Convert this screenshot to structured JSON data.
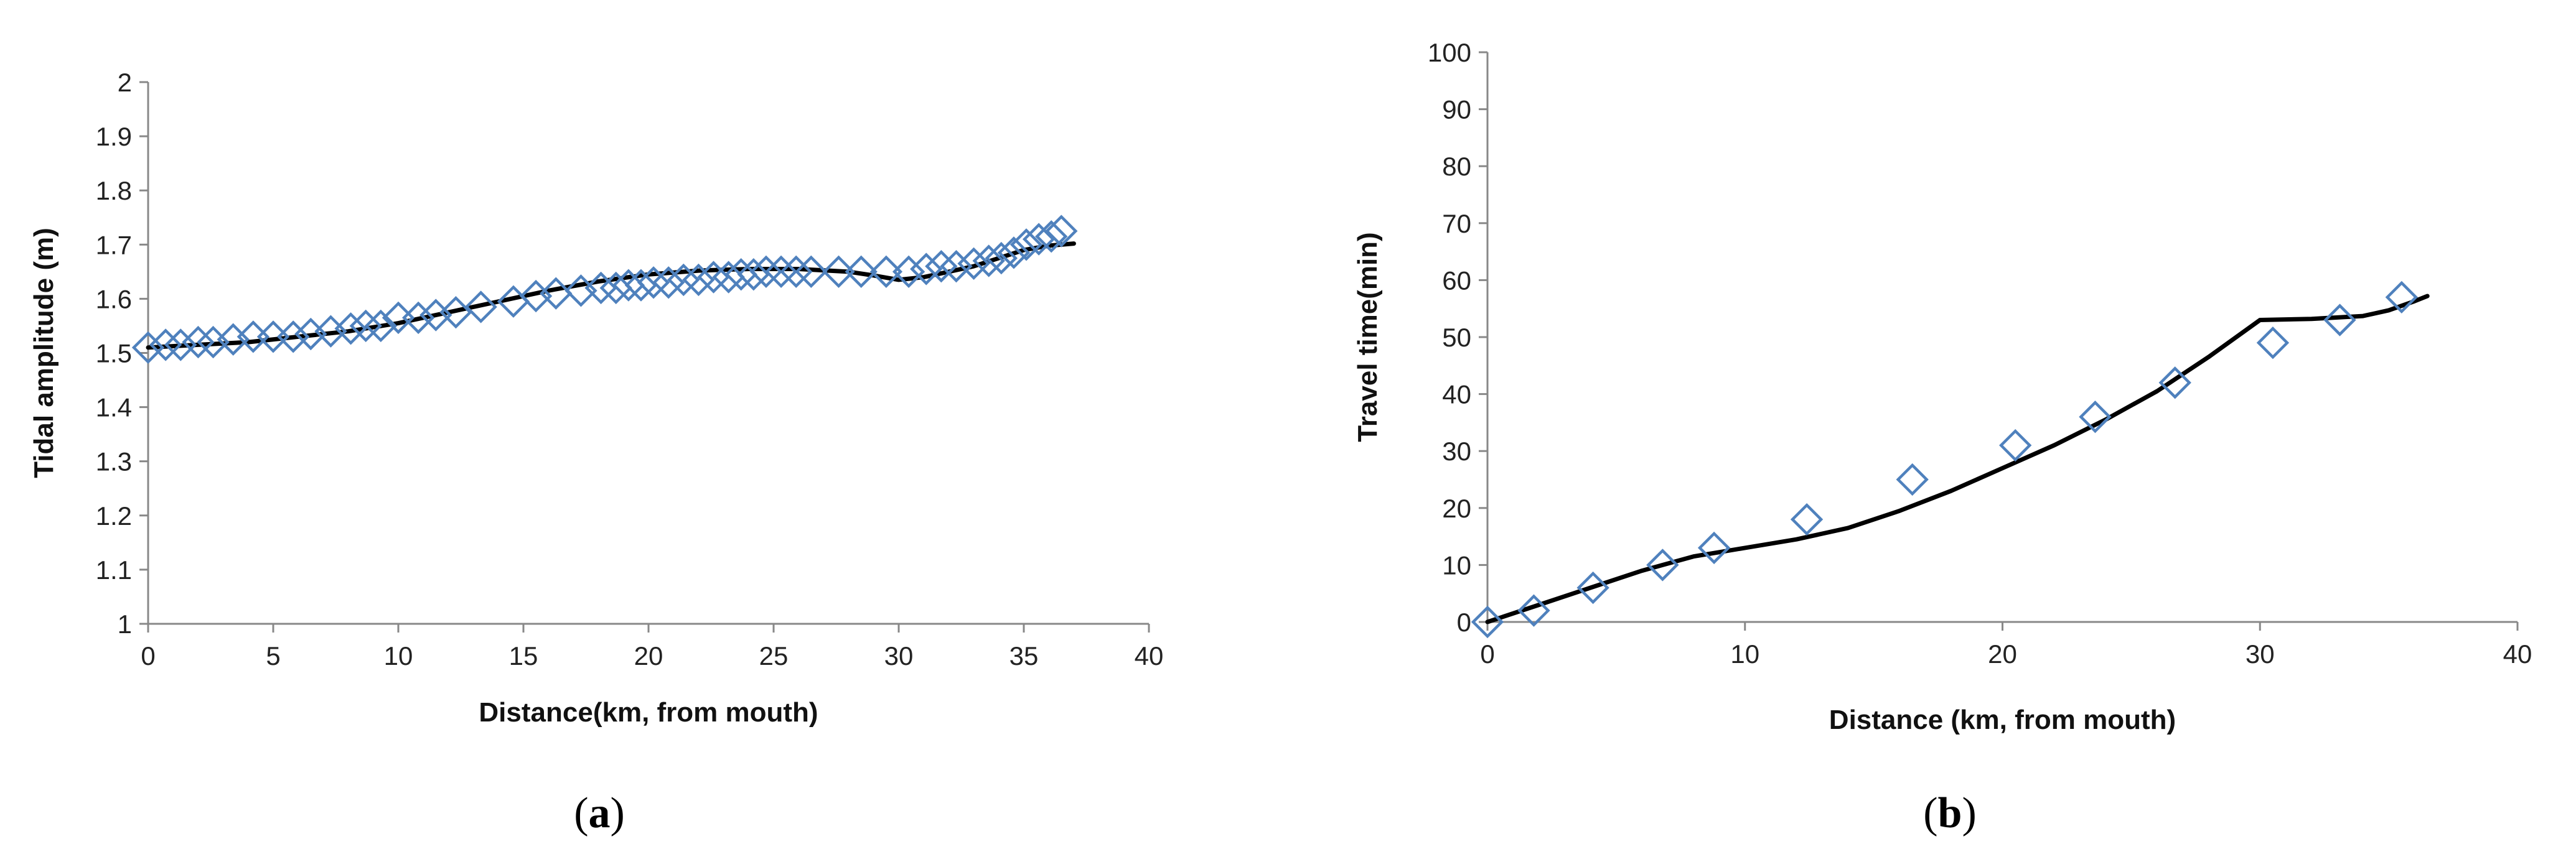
{
  "chart_data": [
    {
      "type": "scatter",
      "panel_label": "a",
      "xlabel": "Distance(km, from mouth)",
      "ylabel": "Tidal amplitude (m)",
      "xlim": [
        0,
        40
      ],
      "ylim": [
        1,
        2
      ],
      "x_ticks": [
        0,
        5,
        10,
        15,
        20,
        25,
        30,
        35,
        40
      ],
      "y_ticks": [
        1,
        1.1,
        1.2,
        1.3,
        1.4,
        1.5,
        1.6,
        1.7,
        1.8,
        1.9,
        2
      ],
      "grid": false,
      "series": [
        {
          "kind": "line",
          "color": "#000000",
          "x": [
            0,
            2,
            4,
            6,
            8,
            10,
            12,
            14,
            16,
            18,
            20,
            22,
            24,
            26,
            28,
            29,
            30,
            31,
            32,
            33,
            34,
            35,
            36,
            37
          ],
          "y": [
            1.51,
            1.515,
            1.52,
            1.53,
            1.54,
            1.555,
            1.575,
            1.595,
            1.615,
            1.632,
            1.645,
            1.652,
            1.655,
            1.655,
            1.65,
            1.643,
            1.635,
            1.64,
            1.65,
            1.66,
            1.675,
            1.69,
            1.698,
            1.702
          ]
        },
        {
          "kind": "markers",
          "marker": "diamond",
          "color": "#4f81bd",
          "x": [
            0,
            0.7,
            1.3,
            2,
            2.6,
            3.4,
            4.2,
            5.0,
            5.8,
            6.5,
            7.3,
            8.1,
            8.7,
            9.3,
            10.0,
            10.8,
            11.5,
            12.3,
            13.3,
            14.6,
            15.5,
            16.3,
            17.3,
            18.1,
            18.7,
            19.2,
            19.7,
            20.2,
            20.8,
            21.4,
            22.0,
            22.6,
            23.2,
            23.7,
            24.2,
            24.7,
            25.3,
            25.9,
            26.5,
            27.6,
            28.5,
            29.5,
            30.4,
            31.1,
            31.7,
            32.3,
            33.0,
            33.6,
            34.1,
            34.6,
            35.1,
            35.6,
            36.1,
            36.5
          ],
          "y": [
            1.51,
            1.515,
            1.515,
            1.52,
            1.52,
            1.525,
            1.53,
            1.53,
            1.53,
            1.535,
            1.54,
            1.545,
            1.55,
            1.55,
            1.565,
            1.565,
            1.57,
            1.575,
            1.585,
            1.595,
            1.605,
            1.61,
            1.615,
            1.62,
            1.62,
            1.625,
            1.625,
            1.63,
            1.63,
            1.635,
            1.635,
            1.64,
            1.64,
            1.645,
            1.645,
            1.65,
            1.65,
            1.65,
            1.65,
            1.65,
            1.65,
            1.65,
            1.65,
            1.655,
            1.66,
            1.66,
            1.665,
            1.67,
            1.675,
            1.685,
            1.7,
            1.71,
            1.715,
            1.725
          ]
        }
      ]
    },
    {
      "type": "scatter",
      "panel_label": "b",
      "xlabel": "Distance (km, from mouth)",
      "ylabel": "Travel time(min)",
      "xlim": [
        0,
        40
      ],
      "ylim": [
        0,
        100
      ],
      "x_ticks": [
        0,
        10,
        20,
        30,
        40
      ],
      "y_ticks": [
        0,
        10,
        20,
        30,
        40,
        50,
        60,
        70,
        80,
        90,
        100
      ],
      "grid": false,
      "series": [
        {
          "kind": "line",
          "color": "#000000",
          "x": [
            0,
            2,
            4,
            6,
            8,
            10,
            12,
            14,
            16,
            18,
            20,
            22,
            24,
            26,
            28,
            30,
            32,
            34,
            35,
            36,
            36.5
          ],
          "y": [
            0,
            3,
            6,
            9,
            11.5,
            13,
            14.5,
            16.5,
            19.5,
            23,
            27,
            31,
            35.5,
            40.5,
            46.5,
            53,
            53.2,
            53.7,
            54.7,
            56.3,
            57.2
          ]
        },
        {
          "kind": "markers",
          "marker": "diamond",
          "color": "#4f81bd",
          "x": [
            0,
            1.8,
            4.1,
            6.8,
            8.8,
            12.4,
            16.5,
            20.5,
            23.6,
            26.7,
            30.5,
            33.1,
            35.5
          ],
          "y": [
            0,
            2,
            6,
            10,
            13,
            18,
            25,
            31,
            36,
            42,
            49,
            53,
            57
          ]
        }
      ]
    }
  ]
}
